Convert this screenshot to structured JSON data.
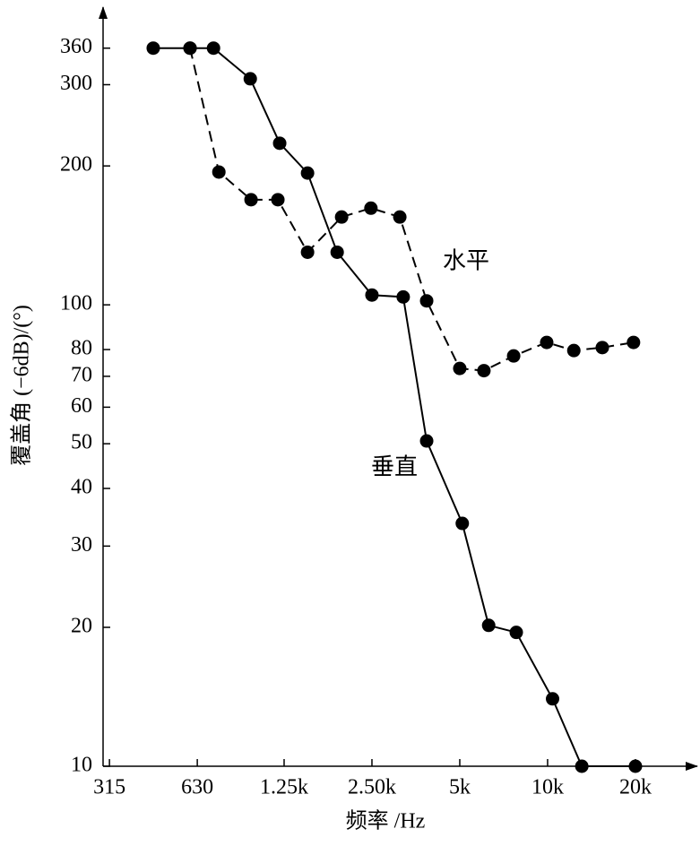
{
  "chart_data": {
    "type": "line",
    "xlabel": "频率 /Hz",
    "ylabel": "覆盖角 (−6dB)/(°)",
    "xlog": true,
    "ylog": true,
    "xlim": [
      260,
      30800
    ],
    "ylim": [
      10,
      430
    ],
    "xticks": [
      315,
      630,
      {
        "value": 1250,
        "label": "1.25k"
      },
      {
        "value": 2500,
        "label": "2.50k"
      },
      {
        "value": 5000,
        "label": "5k"
      },
      {
        "value": 10000,
        "label": "10k"
      },
      {
        "value": 20000,
        "label": "20k"
      }
    ],
    "yticks": [
      10,
      20,
      30,
      40,
      50,
      60,
      70,
      80,
      100,
      200,
      300,
      360
    ],
    "annotations": [
      "水平",
      "垂直"
    ],
    "series": [
      {
        "name": "垂直",
        "color": "#000000",
        "dashed": false,
        "x": [
          445,
          595,
          716,
          957,
          1207,
          1504,
          1900,
          2500,
          3200,
          3850,
          5100,
          6280,
          7810,
          10400,
          13100,
          20000
        ],
        "values": [
          360,
          360,
          360,
          309,
          224,
          193,
          130,
          105,
          104,
          50.7,
          33.6,
          20.2,
          19.5,
          14.0,
          10,
          10
        ]
      },
      {
        "name": "水平",
        "color": "#000000",
        "dashed": true,
        "x": [
          595,
          747,
          963,
          1190,
          1504,
          1968,
          2480,
          3115,
          3850,
          5000,
          6050,
          7650,
          9930,
          12300,
          15400,
          19700
        ],
        "values": [
          360,
          194,
          169,
          169,
          130,
          155,
          162,
          155,
          102,
          72.8,
          72,
          77.5,
          82.9,
          79.6,
          80.8,
          82.9
        ]
      }
    ]
  }
}
